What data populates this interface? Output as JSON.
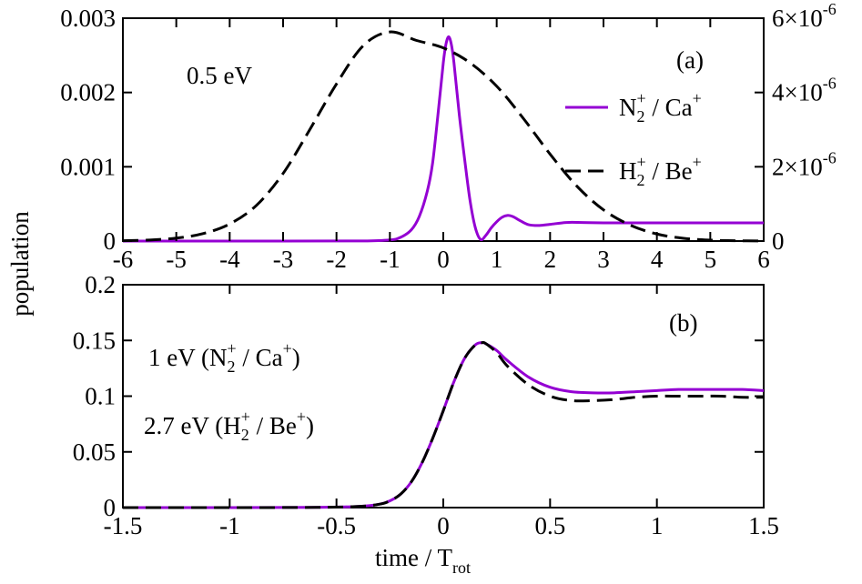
{
  "chart_data": [
    {
      "type": "line",
      "panel_label": "(a)",
      "annotation": "0.5 eV",
      "x_range": [
        -6,
        6
      ],
      "x_ticks": [
        "-6",
        "-5",
        "-4",
        "-3",
        "-2",
        "-1",
        "0",
        "1",
        "2",
        "3",
        "4",
        "5",
        "6"
      ],
      "y_range": [
        0,
        0.003
      ],
      "y_ticks": [
        "0",
        "0.001",
        "0.002",
        "0.003"
      ],
      "y2_range": [
        0,
        6e-06
      ],
      "y2_ticks": [
        {
          "mant": "0",
          "exp": ""
        },
        {
          "mant": "2×10",
          "exp": "-6"
        },
        {
          "mant": "4×10",
          "exp": "-6"
        },
        {
          "mant": "6×10",
          "exp": "-6"
        }
      ],
      "legend_position": "top-right",
      "series": [
        {
          "name": "N2+ / Ca+",
          "legend": {
            "a": "N",
            "a_sub": "2",
            "a_sup": "+",
            "mid": " / Ca",
            "b_sup": "+"
          },
          "color": "#9400d3",
          "style": "solid",
          "axis": "left",
          "x": [
            -6,
            -3,
            -1.5,
            -1.0,
            -0.8,
            -0.6,
            -0.45,
            -0.3,
            -0.2,
            -0.1,
            0.0,
            0.05,
            0.1,
            0.15,
            0.2,
            0.3,
            0.4,
            0.5,
            0.6,
            0.7,
            0.8,
            0.9,
            1.0,
            1.1,
            1.2,
            1.3,
            1.45,
            1.6,
            1.8,
            2.0,
            2.3,
            2.6,
            3.0,
            4.0,
            5.0,
            6.0
          ],
          "y": [
            0,
            0,
            1e-06,
            1.5e-05,
            5e-05,
            0.00015,
            0.00033,
            0.00067,
            0.00105,
            0.0017,
            0.0024,
            0.00265,
            0.00275,
            0.00265,
            0.0024,
            0.0017,
            0.0011,
            0.00055,
            0.00018,
            2e-05,
            8e-05,
            0.00018,
            0.00026,
            0.00032,
            0.000345,
            0.00033,
            0.00027,
            0.00022,
            0.00021,
            0.000225,
            0.00025,
            0.00025,
            0.000245,
            0.000245,
            0.000245,
            0.000245
          ]
        },
        {
          "name": "H2+ / Be+",
          "legend": {
            "a": "H",
            "a_sub": "2",
            "a_sup": "+",
            "mid": " / Be",
            "b_sup": "+"
          },
          "color": "#000000",
          "style": "dashed",
          "axis": "right",
          "x": [
            -6,
            -5.5,
            -5,
            -4.5,
            -4,
            -3.5,
            -3,
            -2.5,
            -2,
            -1.5,
            -1,
            -0.5,
            0,
            0.5,
            1,
            1.5,
            2,
            2.5,
            3,
            3.5,
            4,
            4.5,
            5,
            5.5,
            6
          ],
          "y": [
            1e-08,
            2.9e-08,
            7.9e-08,
            2e-07,
            4.6e-07,
            9.6e-07,
            1.82e-06,
            3e-06,
            4.23e-06,
            5.26e-06,
            5.63e-06,
            5.4e-06,
            5.2e-06,
            4.8e-06,
            4.17e-06,
            3.3e-06,
            2.34e-06,
            1.48e-06,
            8.4e-07,
            4.3e-07,
            1.9e-07,
            7.4e-08,
            2.6e-08,
            8.1e-09,
            2.2e-09
          ]
        }
      ]
    },
    {
      "type": "line",
      "panel_label": "(b)",
      "annotations": [
        {
          "t1": "1 eV (N",
          "sub": "2",
          "sup": "+",
          "t2": " / Ca",
          "sup2": "+",
          "t3": ")"
        },
        {
          "t1": "2.7 eV (H",
          "sub": "2",
          "sup": "+",
          "t2": " / Be",
          "sup2": "+",
          "t3": ")"
        }
      ],
      "x_range": [
        -1.5,
        1.5
      ],
      "x_ticks": [
        "-1.5",
        "-1",
        "-0.5",
        "0",
        "0.5",
        "1",
        "1.5"
      ],
      "y_range": [
        0,
        0.2
      ],
      "y_ticks": [
        "0",
        "0.05",
        "0.1",
        "0.15",
        "0.2"
      ],
      "ylabel": "population",
      "xlabel": {
        "main": "time / T",
        "sub": "rot"
      },
      "series": [
        {
          "name": "N2+ / Ca+",
          "color": "#9400d3",
          "style": "solid",
          "x": [
            -1.5,
            -1.0,
            -0.6,
            -0.4,
            -0.3,
            -0.25,
            -0.2,
            -0.15,
            -0.1,
            -0.05,
            0.0,
            0.05,
            0.1,
            0.15,
            0.18,
            0.2,
            0.25,
            0.3,
            0.4,
            0.5,
            0.6,
            0.7,
            0.8,
            0.9,
            1.0,
            1.1,
            1.2,
            1.3,
            1.4,
            1.5
          ],
          "y": [
            0,
            0,
            0.0002,
            0.001,
            0.003,
            0.006,
            0.012,
            0.023,
            0.04,
            0.062,
            0.087,
            0.113,
            0.134,
            0.146,
            0.148,
            0.147,
            0.141,
            0.132,
            0.117,
            0.108,
            0.104,
            0.103,
            0.103,
            0.104,
            0.105,
            0.106,
            0.106,
            0.106,
            0.106,
            0.105
          ]
        },
        {
          "name": "H2+ / Be+",
          "color": "#000000",
          "style": "dashed",
          "x": [
            -1.5,
            -1.0,
            -0.6,
            -0.4,
            -0.3,
            -0.25,
            -0.2,
            -0.15,
            -0.1,
            -0.05,
            0.0,
            0.05,
            0.1,
            0.15,
            0.18,
            0.2,
            0.25,
            0.3,
            0.4,
            0.5,
            0.6,
            0.7,
            0.8,
            0.9,
            1.0,
            1.1,
            1.2,
            1.3,
            1.4,
            1.5
          ],
          "y": [
            0,
            0,
            0.0002,
            0.001,
            0.003,
            0.006,
            0.012,
            0.023,
            0.04,
            0.062,
            0.087,
            0.113,
            0.134,
            0.146,
            0.148,
            0.147,
            0.139,
            0.127,
            0.11,
            0.1,
            0.096,
            0.096,
            0.097,
            0.099,
            0.1,
            0.1,
            0.1,
            0.1,
            0.099,
            0.099
          ]
        }
      ]
    }
  ]
}
